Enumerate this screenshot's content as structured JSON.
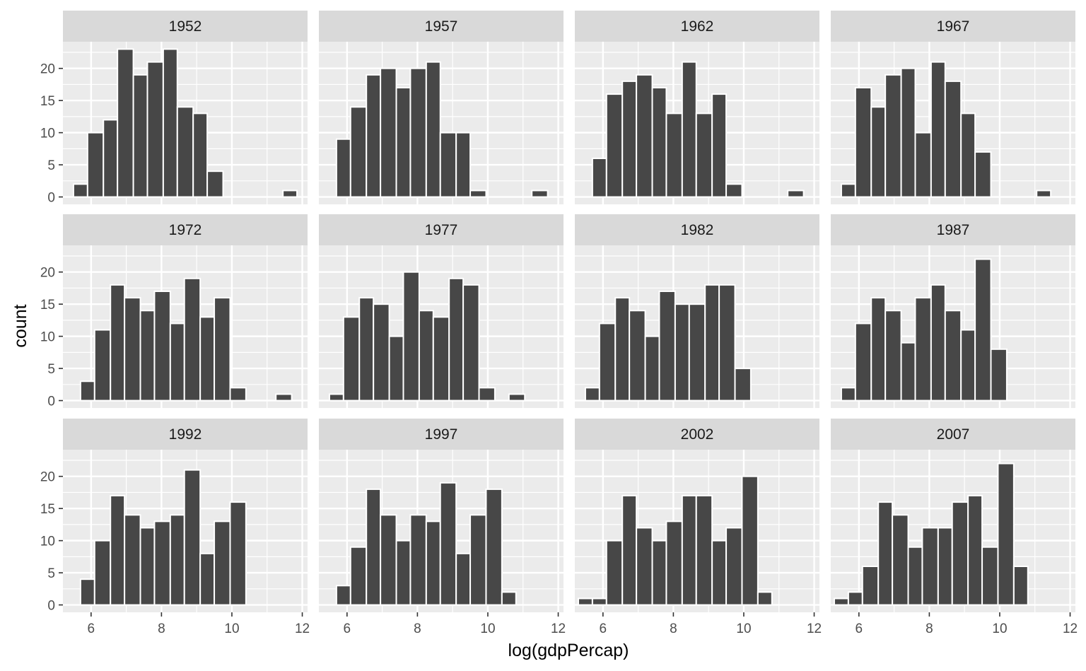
{
  "chart_data": {
    "type": "bar",
    "chart_kind": "faceted histogram",
    "xlabel": "log(gdpPercap)",
    "ylabel": "count",
    "xlim": [
      5.2,
      12.15
    ],
    "ylim": [
      -1.15,
      24.15
    ],
    "x_ticks": [
      6,
      8,
      10,
      12
    ],
    "y_ticks": [
      0,
      5,
      10,
      15,
      20
    ],
    "grid": true,
    "colors": {
      "bar_fill": "#474747",
      "bar_edge": "#ffffff",
      "panel_bg": "#ebebeb",
      "grid": "#ffffff",
      "strip_bg": "#d9d9d9",
      "tick_label": "#4d4d4d"
    },
    "facets": [
      {
        "label": "1952",
        "bins": [
          [
            5.5,
            5.9,
            2
          ],
          [
            5.9,
            6.35,
            10
          ],
          [
            6.35,
            6.75,
            12
          ],
          [
            6.75,
            7.2,
            23
          ],
          [
            7.2,
            7.6,
            19
          ],
          [
            7.6,
            8.05,
            21
          ],
          [
            8.05,
            8.45,
            23
          ],
          [
            8.45,
            8.9,
            14
          ],
          [
            8.9,
            9.3,
            13
          ],
          [
            9.3,
            9.75,
            4
          ],
          [
            11.45,
            11.85,
            1
          ]
        ]
      },
      {
        "label": "1957",
        "bins": [
          [
            5.7,
            6.1,
            9
          ],
          [
            6.1,
            6.55,
            14
          ],
          [
            6.55,
            6.95,
            19
          ],
          [
            6.95,
            7.4,
            20
          ],
          [
            7.4,
            7.8,
            17
          ],
          [
            7.8,
            8.25,
            20
          ],
          [
            8.25,
            8.65,
            21
          ],
          [
            8.65,
            9.1,
            10
          ],
          [
            9.1,
            9.5,
            10
          ],
          [
            9.5,
            9.95,
            1
          ],
          [
            11.25,
            11.7,
            1
          ]
        ]
      },
      {
        "label": "1962",
        "bins": [
          [
            5.7,
            6.1,
            6
          ],
          [
            6.1,
            6.55,
            16
          ],
          [
            6.55,
            6.95,
            18
          ],
          [
            6.95,
            7.4,
            19
          ],
          [
            7.4,
            7.8,
            17
          ],
          [
            7.8,
            8.25,
            13
          ],
          [
            8.25,
            8.65,
            21
          ],
          [
            8.65,
            9.1,
            13
          ],
          [
            9.1,
            9.5,
            16
          ],
          [
            9.5,
            9.95,
            2
          ],
          [
            11.25,
            11.7,
            1
          ]
        ]
      },
      {
        "label": "1967",
        "bins": [
          [
            5.5,
            5.9,
            2
          ],
          [
            5.9,
            6.35,
            17
          ],
          [
            6.35,
            6.75,
            14
          ],
          [
            6.75,
            7.2,
            19
          ],
          [
            7.2,
            7.6,
            20
          ],
          [
            7.6,
            8.05,
            10
          ],
          [
            8.05,
            8.45,
            21
          ],
          [
            8.45,
            8.9,
            18
          ],
          [
            8.9,
            9.3,
            13
          ],
          [
            9.3,
            9.75,
            7
          ],
          [
            11.05,
            11.45,
            1
          ]
        ]
      },
      {
        "label": "1972",
        "bins": [
          [
            5.7,
            6.1,
            3
          ],
          [
            6.1,
            6.55,
            11
          ],
          [
            6.55,
            6.95,
            18
          ],
          [
            6.95,
            7.4,
            16
          ],
          [
            7.4,
            7.8,
            14
          ],
          [
            7.8,
            8.25,
            17
          ],
          [
            8.25,
            8.65,
            12
          ],
          [
            8.65,
            9.1,
            19
          ],
          [
            9.1,
            9.5,
            13
          ],
          [
            9.5,
            9.95,
            16
          ],
          [
            9.95,
            10.4,
            2
          ],
          [
            11.25,
            11.7,
            1
          ]
        ]
      },
      {
        "label": "1977",
        "bins": [
          [
            5.5,
            5.9,
            1
          ],
          [
            5.9,
            6.35,
            13
          ],
          [
            6.35,
            6.75,
            16
          ],
          [
            6.75,
            7.2,
            15
          ],
          [
            7.2,
            7.6,
            10
          ],
          [
            7.6,
            8.05,
            20
          ],
          [
            8.05,
            8.45,
            14
          ],
          [
            8.45,
            8.9,
            13
          ],
          [
            8.9,
            9.3,
            19
          ],
          [
            9.3,
            9.75,
            18
          ],
          [
            9.75,
            10.2,
            2
          ],
          [
            10.6,
            11.05,
            1
          ]
        ]
      },
      {
        "label": "1982",
        "bins": [
          [
            5.5,
            5.9,
            2
          ],
          [
            5.9,
            6.35,
            12
          ],
          [
            6.35,
            6.75,
            16
          ],
          [
            6.75,
            7.2,
            14
          ],
          [
            7.2,
            7.6,
            10
          ],
          [
            7.6,
            8.05,
            17
          ],
          [
            8.05,
            8.45,
            15
          ],
          [
            8.45,
            8.9,
            15
          ],
          [
            8.9,
            9.3,
            18
          ],
          [
            9.3,
            9.75,
            18
          ],
          [
            9.75,
            10.2,
            5
          ]
        ]
      },
      {
        "label": "1987",
        "bins": [
          [
            5.5,
            5.9,
            2
          ],
          [
            5.9,
            6.35,
            12
          ],
          [
            6.35,
            6.75,
            16
          ],
          [
            6.75,
            7.2,
            14
          ],
          [
            7.2,
            7.6,
            9
          ],
          [
            7.6,
            8.05,
            16
          ],
          [
            8.05,
            8.45,
            18
          ],
          [
            8.45,
            8.9,
            14
          ],
          [
            8.9,
            9.3,
            11
          ],
          [
            9.3,
            9.75,
            22
          ],
          [
            9.75,
            10.2,
            8
          ]
        ]
      },
      {
        "label": "1992",
        "bins": [
          [
            5.7,
            6.1,
            4
          ],
          [
            6.1,
            6.55,
            10
          ],
          [
            6.55,
            6.95,
            17
          ],
          [
            6.95,
            7.4,
            14
          ],
          [
            7.4,
            7.8,
            12
          ],
          [
            7.8,
            8.25,
            13
          ],
          [
            8.25,
            8.65,
            14
          ],
          [
            8.65,
            9.1,
            21
          ],
          [
            9.1,
            9.5,
            8
          ],
          [
            9.5,
            9.95,
            13
          ],
          [
            9.95,
            10.4,
            16
          ]
        ]
      },
      {
        "label": "1997",
        "bins": [
          [
            5.7,
            6.1,
            3
          ],
          [
            6.1,
            6.55,
            9
          ],
          [
            6.55,
            6.95,
            18
          ],
          [
            6.95,
            7.4,
            14
          ],
          [
            7.4,
            7.8,
            10
          ],
          [
            7.8,
            8.25,
            14
          ],
          [
            8.25,
            8.65,
            13
          ],
          [
            8.65,
            9.1,
            19
          ],
          [
            9.1,
            9.5,
            8
          ],
          [
            9.5,
            9.95,
            14
          ],
          [
            9.95,
            10.4,
            18
          ],
          [
            10.4,
            10.8,
            2
          ]
        ]
      },
      {
        "label": "2002",
        "bins": [
          [
            5.3,
            5.7,
            1
          ],
          [
            5.7,
            6.1,
            1
          ],
          [
            6.1,
            6.55,
            10
          ],
          [
            6.55,
            6.95,
            17
          ],
          [
            6.95,
            7.4,
            12
          ],
          [
            7.4,
            7.8,
            10
          ],
          [
            7.8,
            8.25,
            13
          ],
          [
            8.25,
            8.65,
            17
          ],
          [
            8.65,
            9.1,
            17
          ],
          [
            9.1,
            9.5,
            10
          ],
          [
            9.5,
            9.95,
            12
          ],
          [
            9.95,
            10.4,
            20
          ],
          [
            10.4,
            10.8,
            2
          ]
        ]
      },
      {
        "label": "2007",
        "bins": [
          [
            5.3,
            5.7,
            1
          ],
          [
            5.7,
            6.1,
            2
          ],
          [
            6.1,
            6.55,
            6
          ],
          [
            6.55,
            6.95,
            16
          ],
          [
            6.95,
            7.4,
            14
          ],
          [
            7.4,
            7.8,
            9
          ],
          [
            7.8,
            8.25,
            12
          ],
          [
            8.25,
            8.65,
            12
          ],
          [
            8.65,
            9.1,
            16
          ],
          [
            9.1,
            9.5,
            17
          ],
          [
            9.5,
            9.95,
            9
          ],
          [
            9.95,
            10.4,
            22
          ],
          [
            10.4,
            10.8,
            6
          ]
        ]
      }
    ]
  }
}
